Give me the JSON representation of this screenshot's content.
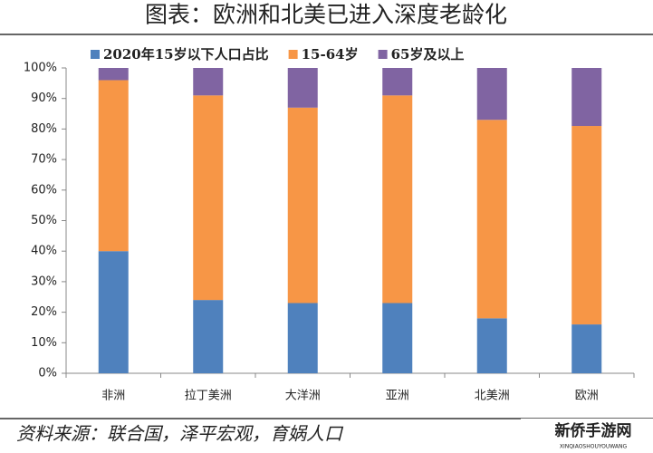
{
  "chart_data": {
    "type": "stacked-bar",
    "title": "图表：欧洲和北美已进入深度老龄化",
    "categories": [
      "非洲",
      "拉丁美洲",
      "大洋洲",
      "亚洲",
      "北美洲",
      "欧洲"
    ],
    "series": [
      {
        "name": "2020年15岁以下人口占比",
        "color": "#4f81bd",
        "values": [
          40,
          24,
          23,
          23,
          18,
          16
        ]
      },
      {
        "name": "15-64岁",
        "color": "#f79646",
        "values": [
          56,
          67,
          64,
          68,
          65,
          65
        ]
      },
      {
        "name": "65岁及以上",
        "color": "#8064a2",
        "values": [
          4,
          9,
          13,
          9,
          17,
          19
        ]
      }
    ],
    "ylim": [
      0,
      100
    ],
    "yticks": [
      {
        "value": 0,
        "label": "0%"
      },
      {
        "value": 10,
        "label": "10%"
      },
      {
        "value": 20,
        "label": "20%"
      },
      {
        "value": 30,
        "label": "30%"
      },
      {
        "value": 40,
        "label": "40%"
      },
      {
        "value": 50,
        "label": "50%"
      },
      {
        "value": 60,
        "label": "60%"
      },
      {
        "value": 70,
        "label": "70%"
      },
      {
        "value": 80,
        "label": "80%"
      },
      {
        "value": 90,
        "label": "90%"
      },
      {
        "value": 100,
        "label": "100%"
      }
    ],
    "grid": false,
    "legend": "top",
    "source": "资料来源：联合国，泽平宏观，育娲人口",
    "watermark": "新侨手游网",
    "watermark_sub": "XINQIAOSHOUYOUWANG"
  }
}
